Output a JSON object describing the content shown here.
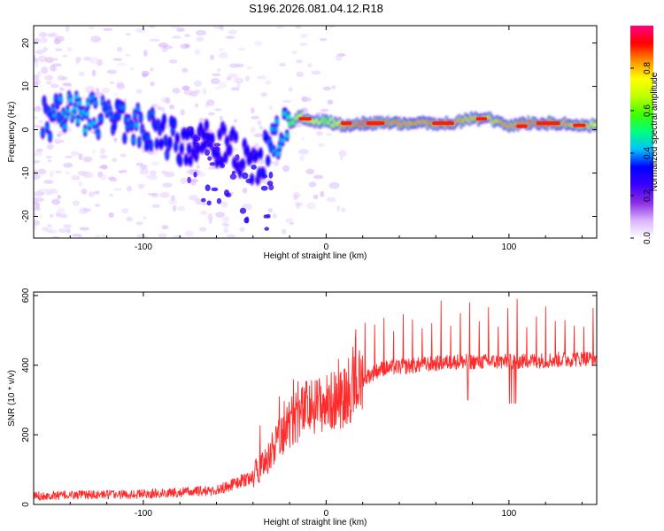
{
  "title": "S196.2026.081.04.12.R18",
  "chart_data": [
    {
      "type": "heatmap",
      "name": "spectrogram",
      "xlabel": "Height of straight line (km)",
      "ylabel": "Frequency (Hz)",
      "xlim": [
        -160,
        148
      ],
      "ylim": [
        -25,
        24
      ],
      "xticks": [
        -100,
        0,
        100
      ],
      "yticks": [
        -20,
        -10,
        0,
        10,
        20
      ],
      "colorbar": {
        "label": "Normalized spectral amplitude",
        "range": [
          0,
          1
        ],
        "ticks": [
          0.0,
          0.2,
          0.4,
          0.6,
          0.8
        ],
        "colors": [
          "#ffffff",
          "#d9b3ff",
          "#8a2be2",
          "#3a00ff",
          "#0000ff",
          "#00c0ff",
          "#00ff80",
          "#40ff00",
          "#c0ff00",
          "#ffff00",
          "#ff9000",
          "#ff0000",
          "#ff0080"
        ]
      },
      "ridge": [
        {
          "x": -155,
          "f": 2,
          "a": 0.35
        },
        {
          "x": -145,
          "f": 4,
          "a": 0.4
        },
        {
          "x": -135,
          "f": 4,
          "a": 0.45
        },
        {
          "x": -125,
          "f": 3,
          "a": 0.4
        },
        {
          "x": -115,
          "f": 2,
          "a": 0.35
        },
        {
          "x": -105,
          "f": 2,
          "a": 0.4
        },
        {
          "x": -95,
          "f": 0,
          "a": 0.35
        },
        {
          "x": -85,
          "f": -2,
          "a": 0.35
        },
        {
          "x": -75,
          "f": -4,
          "a": 0.3
        },
        {
          "x": -65,
          "f": -3,
          "a": 0.3
        },
        {
          "x": -55,
          "f": -4,
          "a": 0.3
        },
        {
          "x": -45,
          "f": -6,
          "a": 0.3
        },
        {
          "x": -38,
          "f": -8,
          "a": 0.3
        },
        {
          "x": -33,
          "f": -5,
          "a": 0.35
        },
        {
          "x": -28,
          "f": -3,
          "a": 0.4
        },
        {
          "x": -22,
          "f": 0,
          "a": 0.45
        },
        {
          "x": -15,
          "f": 3,
          "a": 0.7
        },
        {
          "x": -8,
          "f": 2,
          "a": 0.8
        },
        {
          "x": 0,
          "f": 2,
          "a": 0.6
        },
        {
          "x": 10,
          "f": 1,
          "a": 0.85
        },
        {
          "x": 20,
          "f": 1.5,
          "a": 0.9
        },
        {
          "x": 30,
          "f": 1.5,
          "a": 0.9
        },
        {
          "x": 40,
          "f": 1.5,
          "a": 0.85
        },
        {
          "x": 50,
          "f": 1.5,
          "a": 0.85
        },
        {
          "x": 60,
          "f": 1.5,
          "a": 0.85
        },
        {
          "x": 70,
          "f": 1.5,
          "a": 0.85
        },
        {
          "x": 80,
          "f": 2.5,
          "a": 0.8
        },
        {
          "x": 90,
          "f": 2.5,
          "a": 0.8
        },
        {
          "x": 100,
          "f": 1,
          "a": 0.85
        },
        {
          "x": 110,
          "f": 1.5,
          "a": 0.9
        },
        {
          "x": 120,
          "f": 1.5,
          "a": 0.9
        },
        {
          "x": 130,
          "f": 1.5,
          "a": 0.85
        },
        {
          "x": 140,
          "f": 1,
          "a": 0.8
        },
        {
          "x": 148,
          "f": 1,
          "a": 0.75
        }
      ]
    },
    {
      "type": "line",
      "name": "snr",
      "xlabel": "Height of straight line (km)",
      "ylabel": "SNR (10 * v/v)",
      "xlim": [
        -160,
        148
      ],
      "ylim": [
        0,
        610
      ],
      "xticks": [
        -100,
        0,
        100
      ],
      "yticks": [
        0,
        200,
        400,
        600
      ],
      "color": "#ff2a2a",
      "baseline": [
        {
          "x": -160,
          "y": 25
        },
        {
          "x": -100,
          "y": 30
        },
        {
          "x": -60,
          "y": 40
        },
        {
          "x": -40,
          "y": 80
        },
        {
          "x": -30,
          "y": 150
        },
        {
          "x": -20,
          "y": 230
        },
        {
          "x": -10,
          "y": 280
        },
        {
          "x": 0,
          "y": 290
        },
        {
          "x": 10,
          "y": 310
        },
        {
          "x": 20,
          "y": 360
        },
        {
          "x": 30,
          "y": 390
        },
        {
          "x": 50,
          "y": 400
        },
        {
          "x": 70,
          "y": 410
        },
        {
          "x": 100,
          "y": 410
        },
        {
          "x": 148,
          "y": 420
        }
      ]
    }
  ]
}
